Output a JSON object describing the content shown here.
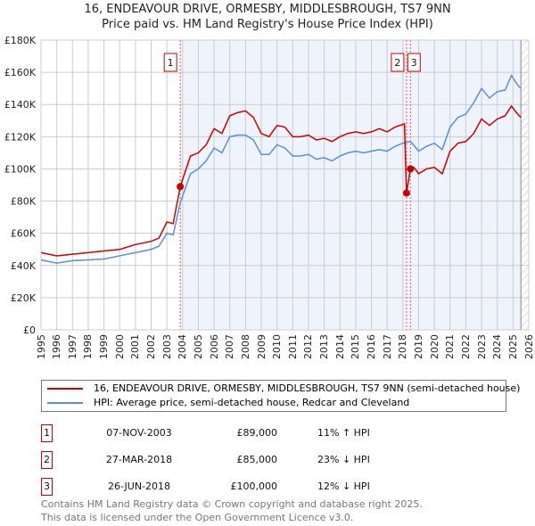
{
  "chart_data": {
    "type": "line",
    "title": "16, ENDEAVOUR DRIVE, ORMESBY, MIDDLESBROUGH, TS7 9NN",
    "subtitle": "Price paid vs. HM Land Registry's House Price Index (HPI)",
    "xlim": [
      1995,
      2026
    ],
    "ylim": [
      0,
      180000
    ],
    "x_ticks": [
      "1995",
      "1996",
      "1997",
      "1998",
      "1999",
      "2000",
      "2001",
      "2002",
      "2003",
      "2004",
      "2005",
      "2006",
      "2007",
      "2008",
      "2009",
      "2010",
      "2011",
      "2012",
      "2013",
      "2014",
      "2015",
      "2016",
      "2017",
      "2018",
      "2019",
      "2020",
      "2021",
      "2022",
      "2023",
      "2024",
      "2025",
      "2026"
    ],
    "y_ticks": [
      {
        "v": 0,
        "label": "£0"
      },
      {
        "v": 20000,
        "label": "£20K"
      },
      {
        "v": 40000,
        "label": "£40K"
      },
      {
        "v": 60000,
        "label": "£60K"
      },
      {
        "v": 80000,
        "label": "£80K"
      },
      {
        "v": 100000,
        "label": "£100K"
      },
      {
        "v": 120000,
        "label": "£120K"
      },
      {
        "v": 140000,
        "label": "£140K"
      },
      {
        "v": 160000,
        "label": "£160K"
      },
      {
        "v": 180000,
        "label": "£180K"
      }
    ],
    "grid": true,
    "colors": {
      "property": "#cc0000",
      "hpi": "#5b8fd6",
      "shade": "#eef3fc"
    },
    "shaded_from": 2003.85,
    "hatched_from": 2025.5,
    "series": [
      {
        "name": "16, ENDEAVOUR DRIVE, ORMESBY, MIDDLESBROUGH, TS7 9NN (semi-detached house)",
        "color": "#cc0000",
        "x": [
          1995,
          1996,
          1997,
          1998,
          1999,
          2000,
          2001,
          2002,
          2002.5,
          2003,
          2003.4,
          2003.85,
          2004.5,
          2005,
          2005.5,
          2006,
          2006.5,
          2007,
          2007.5,
          2008,
          2008.5,
          2009,
          2009.5,
          2010,
          2010.5,
          2011,
          2011.5,
          2012,
          2012.5,
          2013,
          2013.5,
          2014,
          2014.5,
          2015,
          2015.5,
          2016,
          2016.5,
          2017,
          2017.5,
          2018.1,
          2018.23,
          2018.48,
          2018.7,
          2019,
          2019.5,
          2020,
          2020.5,
          2021,
          2021.5,
          2022,
          2022.5,
          2023,
          2023.5,
          2024,
          2024.5,
          2024.9,
          2025.3,
          2025.5
        ],
        "y": [
          48,
          46,
          47,
          48,
          49,
          50,
          53,
          55,
          57,
          67,
          66,
          89,
          108,
          110,
          115,
          125,
          122,
          133,
          135,
          136,
          132,
          122,
          120,
          127,
          126,
          120,
          120,
          121,
          118,
          119,
          117,
          120,
          122,
          123,
          122,
          123,
          125,
          123,
          126,
          128,
          85,
          100,
          101,
          97,
          100,
          101,
          97,
          111,
          116,
          117,
          122,
          131,
          127,
          131,
          133,
          139,
          134,
          132
        ]
      },
      {
        "name": "HPI: Average price, semi-detached house, Redcar and Cleveland",
        "color": "#5b8fd6",
        "x": [
          1995,
          1996,
          1997,
          1998,
          1999,
          2000,
          2001,
          2002,
          2002.5,
          2003,
          2003.4,
          2003.85,
          2004.5,
          2005,
          2005.5,
          2006,
          2006.5,
          2007,
          2007.5,
          2008,
          2008.5,
          2009,
          2009.5,
          2010,
          2010.5,
          2011,
          2011.5,
          2012,
          2012.5,
          2013,
          2013.5,
          2014,
          2014.5,
          2015,
          2015.5,
          2016,
          2016.5,
          2017,
          2017.5,
          2018,
          2018.5,
          2019,
          2019.5,
          2020,
          2020.5,
          2021,
          2021.5,
          2022,
          2022.5,
          2023,
          2023.5,
          2024,
          2024.5,
          2024.9,
          2025.3,
          2025.5
        ],
        "y": [
          43.5,
          41.5,
          43,
          43.5,
          44,
          46,
          48,
          50,
          52,
          60,
          59,
          79,
          97,
          100,
          105,
          113,
          110,
          120,
          121,
          121,
          118,
          109,
          109,
          115,
          113,
          108,
          108,
          109,
          106,
          107,
          105,
          108,
          110,
          111,
          110,
          111,
          112,
          111,
          114,
          116,
          117,
          111,
          114,
          116,
          112,
          126,
          132,
          134,
          141,
          150,
          144,
          148,
          149,
          158,
          152,
          150
        ]
      }
    ],
    "y_unit": "thousands GBP",
    "sales": [
      {
        "id": "1",
        "date": "07-NOV-2003",
        "price": "£89,000",
        "hpi": "11% ↑ HPI",
        "x": 2003.85,
        "y": 89
      },
      {
        "id": "2",
        "date": "27-MAR-2018",
        "price": "£85,000",
        "hpi": "23% ↓ HPI",
        "x": 2018.23,
        "y": 85
      },
      {
        "id": "3",
        "date": "26-JUN-2018",
        "price": "£100,000",
        "hpi": "12% ↓ HPI",
        "x": 2018.48,
        "y": 100
      }
    ]
  },
  "footer": [
    "Contains HM Land Registry data © Crown copyright and database right 2025.",
    "This data is licensed under the Open Government Licence v3.0."
  ]
}
